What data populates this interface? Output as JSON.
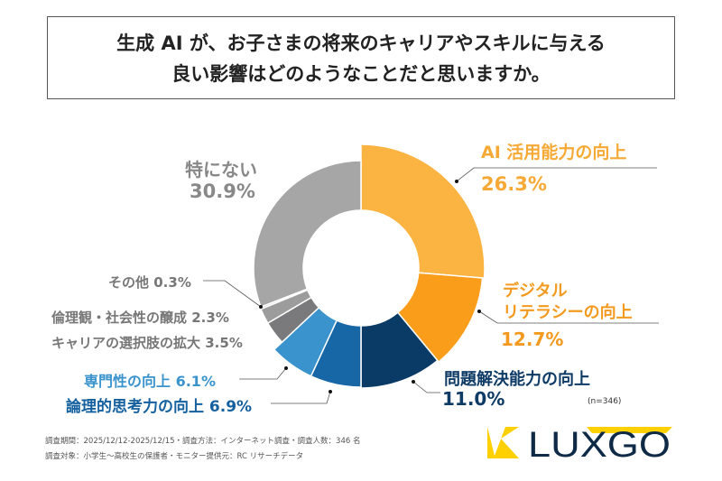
{
  "title": {
    "line1": "生成 AI が、お子さまの将来のキャリアやスキルに与える",
    "line2": "良い影響はどのようなことだと思いますか。"
  },
  "chart_data": {
    "type": "pie",
    "donut": true,
    "start": "12 o'clock, clockwise",
    "categories": [
      "AI 活用能力の向上",
      "デジタル リテラシーの向上",
      "問題解決能力の向上",
      "論理的思考力の向上",
      "専門性の向上",
      "キャリアの選択肢の拡大",
      "倫理観・社会性の醸成",
      "その他",
      "特にない"
    ],
    "values": [
      26.3,
      12.7,
      11.0,
      6.9,
      6.1,
      3.5,
      2.3,
      0.3,
      30.9
    ],
    "unit": "%",
    "colors": [
      "#FBB342",
      "#F99D1B",
      "#0A3A66",
      "#1766A5",
      "#3A93CC",
      "#7A7A7C",
      "#9C9C9C",
      "#D0D0D0",
      "#A6A6A6"
    ],
    "labels": [
      {
        "name": "AI 活用能力の向上",
        "value": "26.3%"
      },
      {
        "name1": "デジタル",
        "name2": "リテラシーの向上",
        "value": "12.7%"
      },
      {
        "name": "問題解決能力の向上",
        "value": "11.0%"
      },
      {
        "name": "論理的思考力の向上",
        "value": "6.9%"
      },
      {
        "name": "専門性の向上",
        "value": "6.1%"
      },
      {
        "name": "キャリアの選択肢の拡大",
        "value": "3.5%"
      },
      {
        "name": "倫理観・社会性の醸成",
        "value": "2.3%"
      },
      {
        "name": "その他",
        "value": "0.3%"
      },
      {
        "name": "特にない",
        "value": "30.9%"
      }
    ],
    "sample": "(n=346)"
  },
  "footer": {
    "line1": "調査期間：2025/12/12-2025/12/15・調査方法：インターネット調査・調査人数：346 名",
    "line2": "調査対象：小学生～高校生の保護者・モニター提供元：RC リサーチデータ",
    "logo_text": "LUXGO",
    "logo_colors": {
      "yellow": "#FFD000",
      "navy": "#0E2A47"
    }
  }
}
